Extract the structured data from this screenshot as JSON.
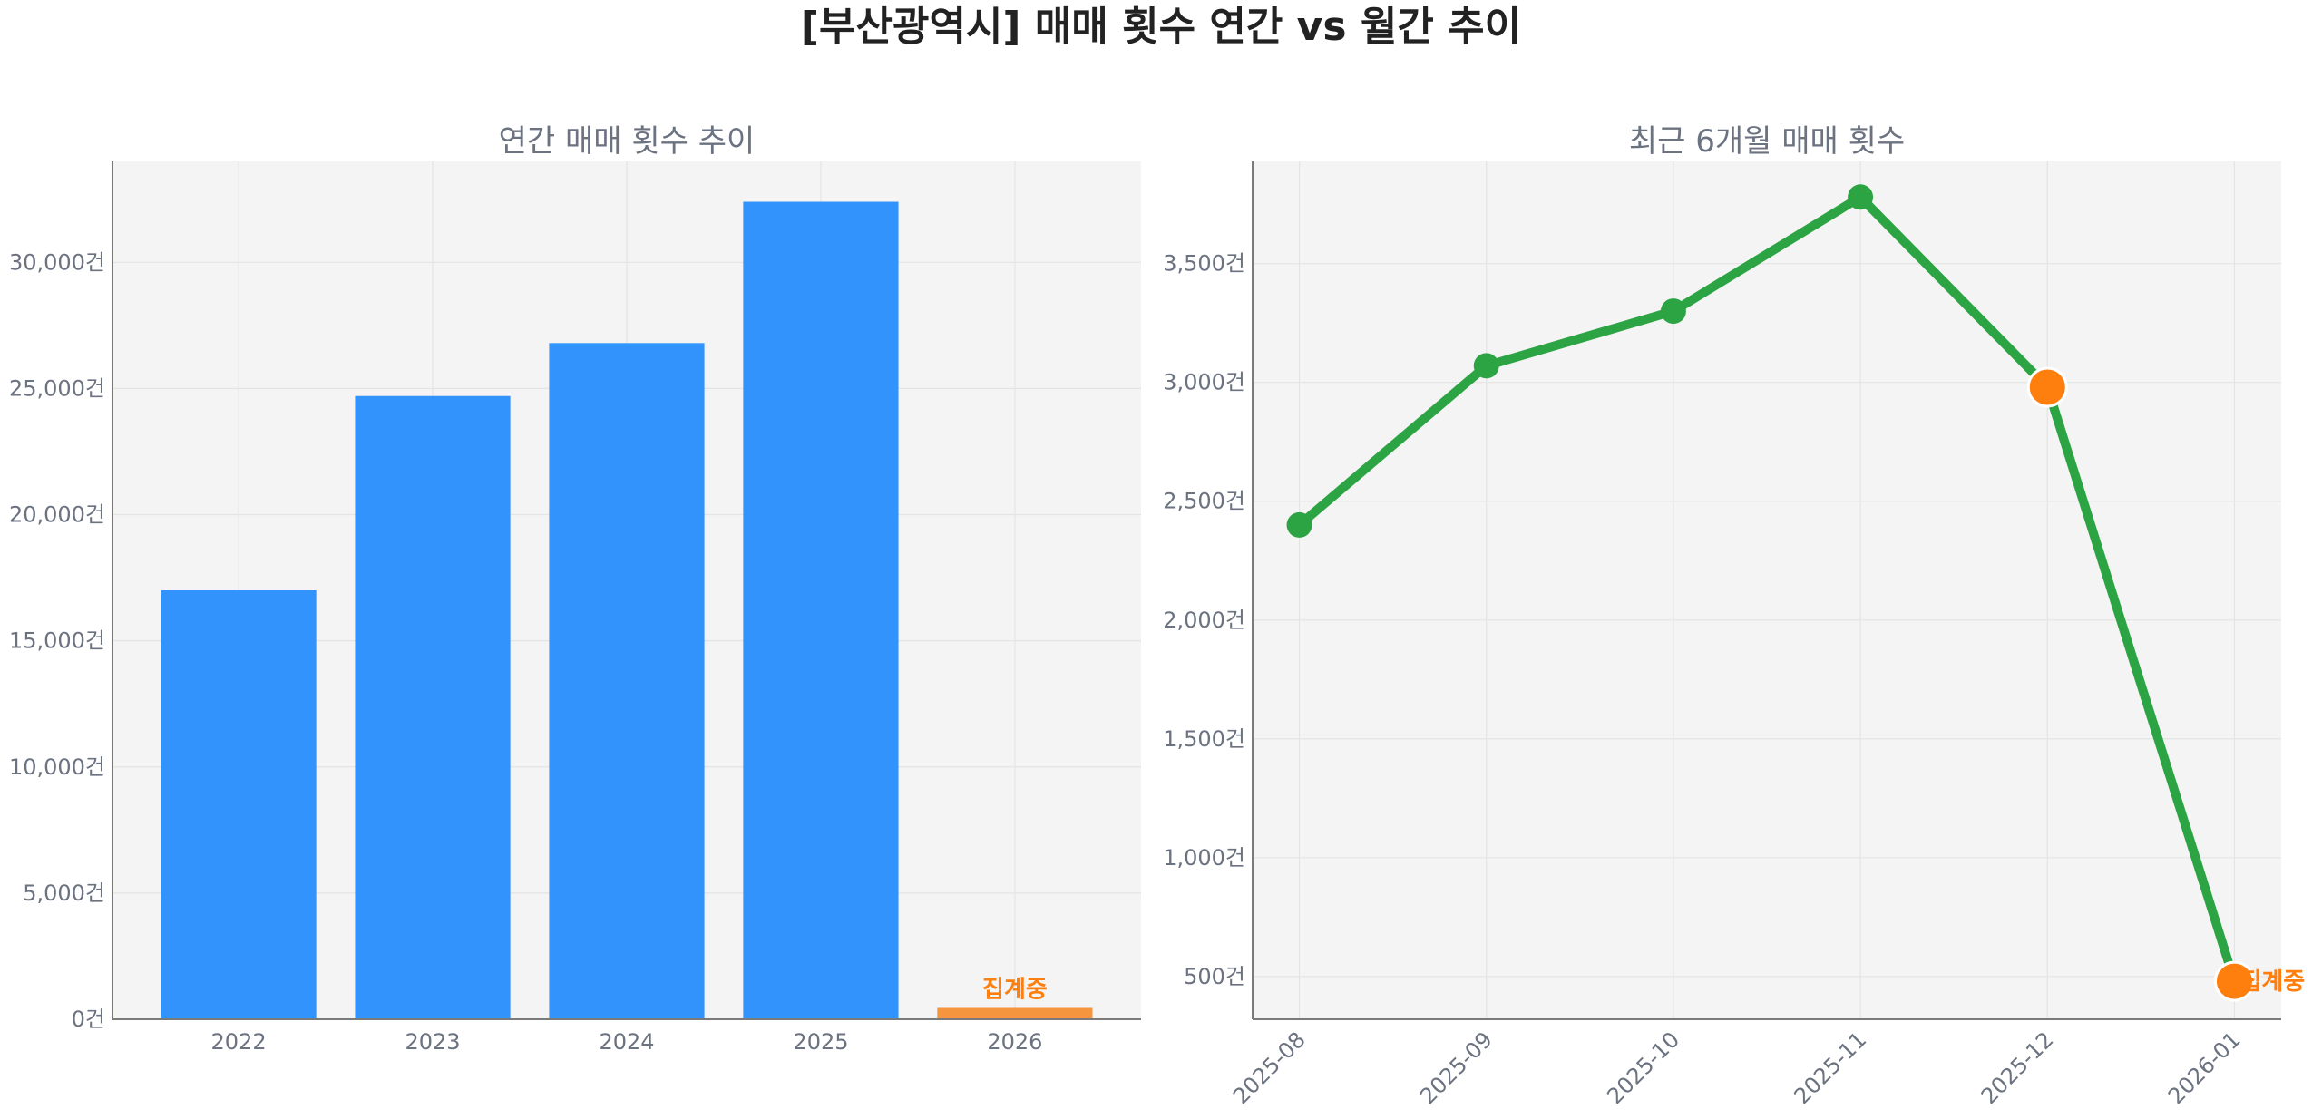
{
  "figure": {
    "title": "[부산광역시] 매매 횟수 연간 vs 월간 추이"
  },
  "chart_data": [
    {
      "type": "bar",
      "title": "연간 매매 횟수 추이",
      "xlabel": "",
      "ylabel": "",
      "categories": [
        "2022",
        "2023",
        "2024",
        "2025",
        "2026"
      ],
      "values": [
        17000,
        24700,
        26800,
        32400,
        450
      ],
      "bar_colors": [
        "#3193fb",
        "#3193fb",
        "#3193fb",
        "#3193fb",
        "#f5963f"
      ],
      "ylim": [
        0,
        34000
      ],
      "yticks": [
        0,
        5000,
        10000,
        15000,
        20000,
        25000,
        30000
      ],
      "ytick_labels": [
        "0건",
        "5,000건",
        "10,000건",
        "15,000건",
        "20,000건",
        "25,000건",
        "30,000건"
      ],
      "annotations": [
        {
          "category": "2026",
          "text": "집계중"
        }
      ],
      "grid": true,
      "legend": "none"
    },
    {
      "type": "line",
      "title": "최근 6개월 매매 횟수",
      "xlabel": "",
      "ylabel": "",
      "x": [
        "2025-08",
        "2025-09",
        "2025-10",
        "2025-11",
        "2025-12",
        "2026-01"
      ],
      "series": [
        {
          "values": [
            2400,
            3070,
            3300,
            3780,
            2980,
            480
          ],
          "color": "#2ca444"
        }
      ],
      "highlight_points": [
        {
          "x": "2025-12",
          "color": "#ff7f0e"
        },
        {
          "x": "2026-01",
          "color": "#ff7f0e"
        }
      ],
      "ylim": [
        320,
        3930
      ],
      "yticks": [
        500,
        1000,
        1500,
        2000,
        2500,
        3000,
        3500
      ],
      "ytick_labels": [
        "500건",
        "1,000건",
        "1,500건",
        "2,000건",
        "2,500건",
        "3,000건",
        "3,500건"
      ],
      "annotations": [
        {
          "x": "2026-01",
          "text": "집계중"
        }
      ],
      "grid": true,
      "legend": "none"
    }
  ]
}
